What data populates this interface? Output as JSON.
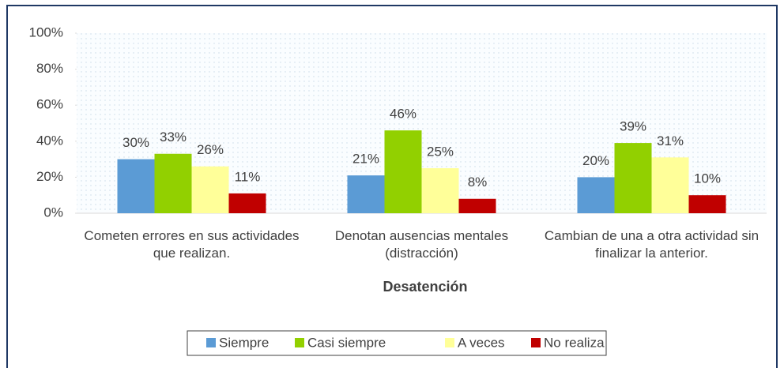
{
  "chart_data": {
    "type": "bar",
    "x_label": "Desatención",
    "categories": [
      "Cometen errores en sus actividades que realizan.",
      "Denotan ausencias mentales (distracción)",
      "Cambian de una a otra actividad sin finalizar la anterior."
    ],
    "series": [
      {
        "name": "Siempre",
        "color": "#5b9bd5",
        "values": [
          30,
          21,
          20
        ],
        "value_labels": [
          "30%",
          "21%",
          "20%"
        ]
      },
      {
        "name": "Casi siempre",
        "color": "#92d000",
        "values": [
          33,
          46,
          39
        ],
        "value_labels": [
          "33%",
          "46%",
          "39%"
        ]
      },
      {
        "name": "A veces",
        "color": "#ffff99",
        "values": [
          26,
          25,
          31
        ],
        "value_labels": [
          "26%",
          "25%",
          "31%"
        ]
      },
      {
        "name": "No realiza",
        "color": "#c00000",
        "values": [
          11,
          8,
          10
        ],
        "value_labels": [
          "11%",
          "8%",
          "10%"
        ]
      }
    ],
    "ylim": [
      0,
      100
    ],
    "yticks": [
      {
        "value": 0,
        "label": "0%"
      },
      {
        "value": 20,
        "label": "20%"
      },
      {
        "value": 40,
        "label": "40%"
      },
      {
        "value": 60,
        "label": "60%"
      },
      {
        "value": 80,
        "label": "80%"
      },
      {
        "value": 100,
        "label": "100%"
      }
    ],
    "legend": "bottom"
  }
}
